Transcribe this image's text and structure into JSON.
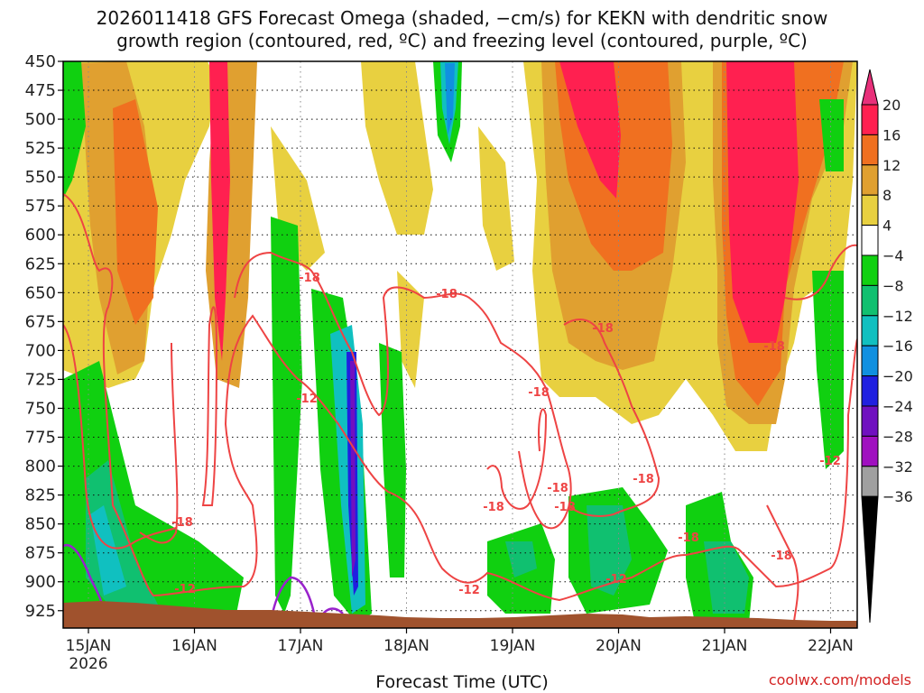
{
  "title_line1": "2026011418 GFS Forecast Omega (shaded, −cm/s) for KEKN with dendritic snow",
  "title_line2": "growth region (contoured, red, ºC) and freezing level (contoured, purple, ºC)",
  "x_axis_label": "Forecast Time (UTC)",
  "credit": "coolwx.com/models",
  "chart_data": {
    "type": "heatmap",
    "x_ticks": [
      "15JAN",
      "16JAN",
      "17JAN",
      "18JAN",
      "19JAN",
      "20JAN",
      "21JAN",
      "22JAN"
    ],
    "x_year_label": "2026",
    "y_ticks": [
      "450",
      "475",
      "500",
      "525",
      "550",
      "575",
      "600",
      "625",
      "650",
      "675",
      "700",
      "725",
      "750",
      "775",
      "800",
      "825",
      "850",
      "875",
      "900",
      "925"
    ],
    "y_range": [
      450,
      940
    ],
    "colorbar": {
      "labels": [
        "20",
        "16",
        "12",
        "8",
        "4",
        "−4",
        "−8",
        "−12",
        "−16",
        "−20",
        "−24",
        "−28",
        "−32",
        "−36"
      ],
      "colors": [
        "#ff2050",
        "#f07020",
        "#e0a030",
        "#e8d040",
        "#ffffff",
        "#10d010",
        "#10c070",
        "#10c0c0",
        "#1090e0",
        "#2020e0",
        "#7010c0",
        "#a010c0",
        "#a0a0a0"
      ]
    },
    "contour_labels": [
      "-18",
      "-18",
      "-12",
      "-18",
      "-18",
      "-18",
      "-18",
      "-18",
      "-18",
      "-18",
      "-18",
      "-12",
      "-12",
      "-12",
      "-18",
      "-18",
      "-12"
    ],
    "colors": {
      "dendritic_contour": "#ee4444",
      "freezing_contour": "#9922cc",
      "terrain": "#a0522d"
    }
  }
}
